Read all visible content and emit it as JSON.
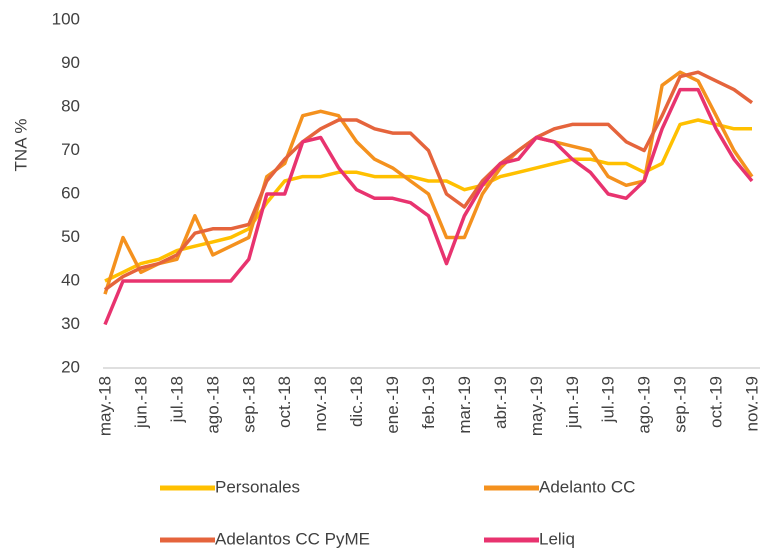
{
  "chart_data": {
    "type": "line",
    "y_label": "TNA %",
    "categories": [
      "may.-18",
      null,
      "jun.-18",
      null,
      "jul.-18",
      null,
      "ago.-18",
      null,
      "sep.-18",
      null,
      "oct.-18",
      null,
      "nov.-18",
      null,
      "dic.-18",
      null,
      "ene.-19",
      null,
      "feb.-19",
      null,
      "mar.-19",
      null,
      "abr.-19",
      null,
      "may.-19",
      null,
      "jun.-19",
      null,
      "jul.-19",
      null,
      "ago.-19",
      null,
      "sep.-19",
      null,
      "oct.-19",
      null,
      "nov.-19"
    ],
    "series": [
      {
        "name": "Personales",
        "color": "#ffc000",
        "values": [
          40,
          42,
          44,
          45,
          47,
          48,
          49,
          50,
          52,
          58,
          63,
          64,
          64,
          65,
          65,
          64,
          64,
          64,
          63,
          63,
          61,
          62,
          64,
          65,
          66,
          67,
          68,
          68,
          67,
          67,
          65,
          67,
          76,
          77,
          76,
          75,
          75
        ]
      },
      {
        "name": "Adelanto CC",
        "color": "#f4911e",
        "values": [
          37,
          50,
          42,
          44,
          45,
          55,
          46,
          48,
          50,
          64,
          67,
          78,
          79,
          78,
          72,
          68,
          66,
          63,
          60,
          50,
          50,
          60,
          66,
          70,
          73,
          72,
          71,
          70,
          64,
          62,
          63,
          85,
          88,
          86,
          78,
          70,
          64
        ]
      },
      {
        "name": "Adelantos CC PyME",
        "color": "#e5643c",
        "values": [
          38,
          41,
          43,
          44,
          46,
          51,
          52,
          52,
          53,
          63,
          68,
          72,
          75,
          77,
          77,
          75,
          74,
          74,
          70,
          60,
          57,
          63,
          67,
          70,
          73,
          75,
          76,
          76,
          76,
          72,
          70,
          78,
          87,
          88,
          86,
          84,
          81
        ]
      },
      {
        "name": "Leliq",
        "color": "#e8336f",
        "values": [
          30,
          40,
          40,
          40,
          40,
          40,
          40,
          40,
          45,
          60,
          60,
          72,
          73,
          66,
          61,
          59,
          59,
          58,
          55,
          44,
          55,
          62,
          67,
          68,
          73,
          72,
          68,
          65,
          60,
          59,
          63,
          75,
          84,
          84,
          75,
          68,
          63
        ]
      }
    ],
    "ylim": [
      20,
      100
    ],
    "yticks": [
      20,
      30,
      40,
      50,
      60,
      70,
      80,
      90,
      100
    ],
    "grid": false
  }
}
